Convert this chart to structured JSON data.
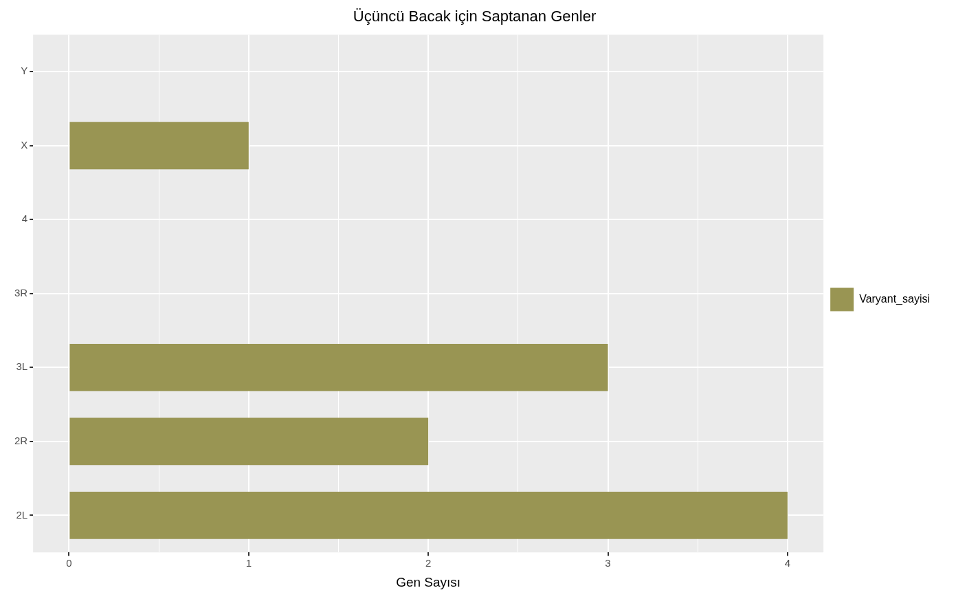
{
  "chart_data": {
    "type": "bar",
    "orientation": "horizontal",
    "title": "Üçüncü Bacak için Saptanan Genler",
    "xlabel": "Gen Sayısı",
    "categories": [
      "Y",
      "X",
      "4",
      "3R",
      "3L",
      "2R",
      "2L"
    ],
    "series": [
      {
        "name": "Varyant_sayisi",
        "color": "#999553",
        "values": [
          0,
          1,
          0,
          0,
          3,
          2,
          4
        ]
      }
    ],
    "xlim": [
      -0.2,
      4.2
    ],
    "xticks": [
      0,
      {
        "value": 0.5,
        "label": null
      },
      1,
      {
        "value": 1.5,
        "label": null
      },
      2,
      {
        "value": 2.5,
        "label": null
      },
      3,
      {
        "value": 3.5,
        "label": null
      },
      4
    ],
    "grid": true,
    "legend": "right"
  }
}
